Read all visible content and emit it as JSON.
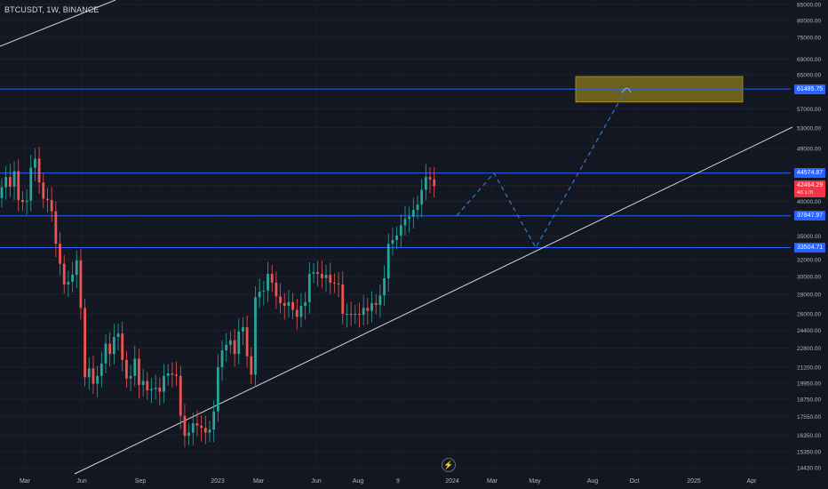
{
  "header": {
    "symbol_title": "BTCUSDT, 1W, BINANCE"
  },
  "watermark_icon": "tradingview-lightning-icon",
  "colors": {
    "background": "#131722",
    "bull": "#26a69a",
    "bear": "#ef5350",
    "level_line": "#2962ff",
    "trend_line": "#d1d4dc",
    "projection": "#2e7ad1",
    "target_zone": "#8a7a1d",
    "axis_text": "#b2b5be"
  },
  "chart_data": {
    "type": "candlestick",
    "title": "BTCUSDT, 1W, BINANCE",
    "x_axis": {
      "ticks": [
        "Mar",
        "Jun",
        "Sep",
        "2023",
        "Mar",
        "Jun",
        "Aug",
        "9",
        "2024",
        "Mar",
        "May",
        "Aug",
        "Oct",
        "2025",
        "Apr"
      ]
    },
    "y_axis": {
      "scale": "log",
      "range": [
        14000,
        90000
      ],
      "ticks": [
        85000,
        80000,
        75000,
        69000,
        65000,
        57000,
        53000,
        49000,
        40000,
        35000,
        32000,
        30000,
        28000,
        26000,
        24400,
        22800,
        21200,
        19950,
        18750,
        17550,
        16350,
        15350,
        14430
      ],
      "tick_labels": [
        "85000.00",
        "80000.00",
        "75000.00",
        "69000.00",
        "65000.00",
        "57000.00",
        "53000.00",
        "49000.00",
        "40000.00",
        "35000.00",
        "32000.00",
        "30000.00",
        "28000.00",
        "26000.00",
        "24400.00",
        "22800.00",
        "21200.00",
        "19950.00",
        "18750.00",
        "17550.00",
        "16350.00",
        "15350.00",
        "14430.00"
      ]
    },
    "horizontal_levels": [
      {
        "value": 61485.75,
        "label": "61485.75"
      },
      {
        "value": 44574.87,
        "label": "44574.87"
      },
      {
        "value": 37847.97,
        "label": "37847.97"
      },
      {
        "value": 33504.71,
        "label": "33504.71"
      }
    ],
    "current_price": {
      "value": 42464.29,
      "label": "42464.29",
      "countdown": "4d 17h"
    },
    "candles_close": [
      42200,
      43900,
      42300,
      44900,
      40200,
      39900,
      40100,
      45500,
      47100,
      43000,
      40400,
      40200,
      38500,
      34000,
      31500,
      29100,
      29400,
      30200,
      31900,
      26600,
      20400,
      21100,
      19900,
      20500,
      21500,
      23200,
      22300,
      23800,
      24100,
      21800,
      20300,
      20500,
      21900,
      19800,
      20100,
      19400,
      19500,
      19600,
      19300,
      20500,
      20700,
      20600,
      20500,
      17600,
      16300,
      16500,
      17100,
      16950,
      16800,
      16500,
      16700,
      17900,
      21200,
      22600,
      23100,
      23500,
      22300,
      24300,
      24700,
      22100,
      20600,
      27700,
      28300,
      28400,
      30300,
      29300,
      27800,
      27100,
      26800,
      27200,
      26400,
      25700,
      26800,
      27200,
      30300,
      30500,
      30300,
      29800,
      30200,
      29300,
      29200,
      29100,
      26000,
      26000,
      25900,
      26000,
      25900,
      26600,
      26300,
      27100,
      26900,
      27900,
      29800,
      34000,
      34500,
      35100,
      36500,
      37400,
      37700,
      38700,
      39500,
      41800,
      43900,
      43500,
      42400
    ],
    "projection_path": [
      {
        "price": 37847.97
      },
      {
        "price": 44574.87
      },
      {
        "price": 33504.71
      },
      {
        "price": 61485.75
      }
    ],
    "target_zone": {
      "top": 64500,
      "bottom": 58500
    }
  }
}
